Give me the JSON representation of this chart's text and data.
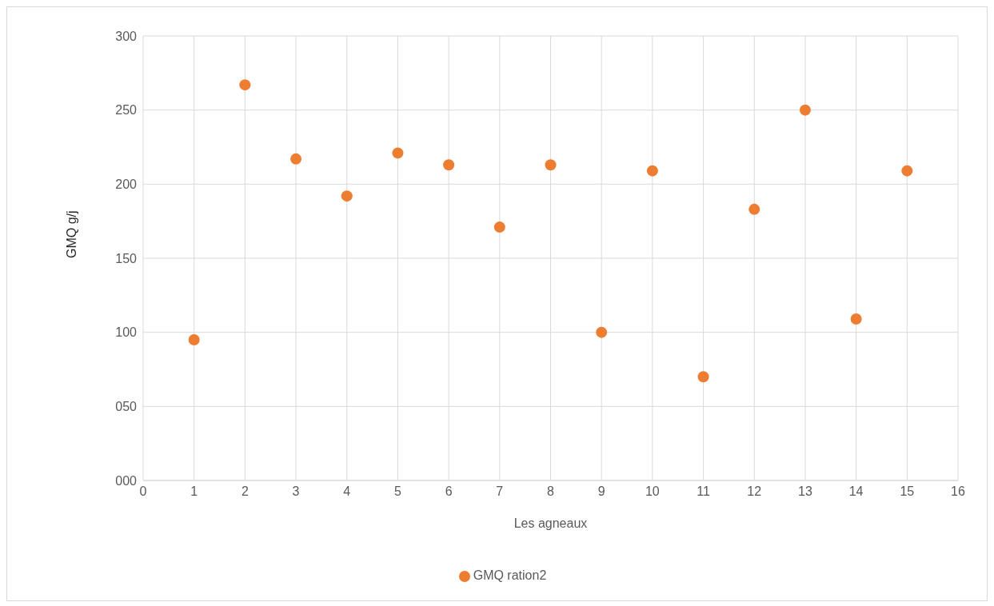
{
  "chart_data": {
    "type": "scatter",
    "xlabel": "Les agneaux",
    "ylabel": "GMQ g/j",
    "x": [
      1,
      2,
      3,
      4,
      5,
      6,
      7,
      8,
      9,
      10,
      11,
      12,
      13,
      14,
      15
    ],
    "series": [
      {
        "name": "GMQ ration2",
        "color": "#ed7d31",
        "values": [
          95,
          267,
          217,
          192,
          221,
          213,
          171,
          213,
          100,
          209,
          70,
          183,
          250,
          109,
          209
        ]
      }
    ],
    "xlim": [
      0,
      16
    ],
    "xticks": [
      0,
      1,
      2,
      3,
      4,
      5,
      6,
      7,
      8,
      9,
      10,
      11,
      12,
      13,
      14,
      15,
      16
    ],
    "ylim": [
      0,
      300
    ],
    "yticks": [
      {
        "value": 0,
        "label": "000"
      },
      {
        "value": 50,
        "label": "050"
      },
      100,
      150,
      200,
      250,
      300
    ],
    "grid": true,
    "legend": "bottom",
    "marker": "circle"
  }
}
